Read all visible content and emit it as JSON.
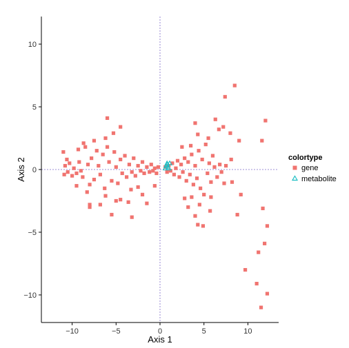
{
  "chart_data": {
    "type": "scatter",
    "xlabel": "Axis 1",
    "ylabel": "Axis 2",
    "xlim": [
      -13.5,
      13.5
    ],
    "ylim": [
      -12.2,
      12.2
    ],
    "x_ticks": [
      -10,
      -5,
      0,
      5,
      10
    ],
    "y_ticks": [
      -10,
      -5,
      0,
      5,
      10
    ],
    "x_tick_labels": [
      "−10",
      "−5",
      "0",
      "5",
      "10"
    ],
    "y_tick_labels": [
      "−10",
      "−5",
      "0",
      "5",
      "10"
    ],
    "grid": false,
    "reference_lines": {
      "x": 0,
      "y": 0,
      "color": "#7b68c8",
      "style": "dotted"
    },
    "legend": {
      "title": "colortype",
      "placement": "right",
      "entries": [
        {
          "label": "gene",
          "marker": "square",
          "color": "#f07470"
        },
        {
          "label": "metabolite",
          "marker": "triangle-open",
          "color": "#1fbfc4"
        }
      ]
    },
    "series": [
      {
        "name": "gene",
        "marker": "square",
        "color": "#f07470",
        "points": [
          [
            -11,
            1.4
          ],
          [
            -10.8,
            0.3
          ],
          [
            -10.6,
            0.8
          ],
          [
            -10.5,
            -0.2
          ],
          [
            -10.9,
            -0.4
          ],
          [
            -10.3,
            0.5
          ],
          [
            -10,
            -0.5
          ],
          [
            -9.8,
            0.1
          ],
          [
            -9.5,
            -0.3
          ],
          [
            -9.2,
            0.6
          ],
          [
            -9,
            -0.1
          ],
          [
            -8.8,
            -0.6
          ],
          [
            -8.5,
            1.8
          ],
          [
            -9.3,
            1.6
          ],
          [
            -8.2,
            0.4
          ],
          [
            -8,
            -1.2
          ],
          [
            -7.8,
            0.9
          ],
          [
            -7.5,
            -0.8
          ],
          [
            -7.2,
            1.5
          ],
          [
            -7,
            0.3
          ],
          [
            -6.8,
            -0.4
          ],
          [
            -6.5,
            1.2
          ],
          [
            -6.3,
            -1.5
          ],
          [
            -6,
            1.8
          ],
          [
            -5.8,
            0.6
          ],
          [
            -5.5,
            -0.9
          ],
          [
            -5.2,
            1.4
          ],
          [
            -5,
            0.2
          ],
          [
            -4.8,
            -1.1
          ],
          [
            -4.5,
            0.8
          ],
          [
            -4.3,
            -0.3
          ],
          [
            -4,
            1.1
          ],
          [
            -3.8,
            -0.6
          ],
          [
            -3.5,
            0.4
          ],
          [
            -3.2,
            -0.2
          ],
          [
            -3,
            0.9
          ],
          [
            -2.8,
            -0.5
          ],
          [
            -2.5,
            0.3
          ],
          [
            -2.2,
            -0.1
          ],
          [
            -2,
            0.6
          ],
          [
            -1.8,
            -0.3
          ],
          [
            -1.5,
            0.2
          ],
          [
            -1.2,
            -0.2
          ],
          [
            -1,
            0.4
          ],
          [
            -0.8,
            -0.1
          ],
          [
            -0.6,
            0.1
          ],
          [
            -0.4,
            -0.3
          ],
          [
            -0.2,
            0.2
          ],
          [
            -6,
            4.1
          ],
          [
            -4.5,
            3.4
          ],
          [
            -5.3,
            2.9
          ],
          [
            -7.5,
            2.3
          ],
          [
            -8.7,
            2.1
          ],
          [
            -6.2,
            2.5
          ],
          [
            -9.5,
            -1.3
          ],
          [
            -8.3,
            -1.8
          ],
          [
            -8,
            -2.8
          ],
          [
            -8,
            -3
          ],
          [
            -6.8,
            -2.8
          ],
          [
            -6.2,
            -2.1
          ],
          [
            -5.5,
            -3.6
          ],
          [
            -4.5,
            -2.4
          ],
          [
            -3.6,
            -2.6
          ],
          [
            -3.3,
            -1.6
          ],
          [
            -3.2,
            -3.8
          ],
          [
            -2.5,
            -1.4
          ],
          [
            -2,
            -2
          ],
          [
            -1.5,
            -2.7
          ],
          [
            -0.6,
            -1.3
          ],
          [
            -5,
            -2.5
          ],
          [
            0.6,
            0.2
          ],
          [
            0.8,
            -0.2
          ],
          [
            1,
            0.3
          ],
          [
            1.2,
            -0.1
          ],
          [
            1.4,
            0.5
          ],
          [
            1.6,
            -0.4
          ],
          [
            1.8,
            0.1
          ],
          [
            2,
            0.7
          ],
          [
            2.2,
            -0.6
          ],
          [
            2.4,
            0.4
          ],
          [
            2.6,
            -0.2
          ],
          [
            2.8,
            0.9
          ],
          [
            3,
            -0.9
          ],
          [
            3.2,
            0.6
          ],
          [
            3.4,
            -0.4
          ],
          [
            3.6,
            1.2
          ],
          [
            3.8,
            -1.2
          ],
          [
            4,
            0.3
          ],
          [
            4.2,
            -0.7
          ],
          [
            4.4,
            1.5
          ],
          [
            4.6,
            -1.5
          ],
          [
            4.8,
            0.8
          ],
          [
            5,
            -2
          ],
          [
            5.2,
            2
          ],
          [
            5.4,
            -0.3
          ],
          [
            5.6,
            0.5
          ],
          [
            5.8,
            -1
          ],
          [
            6,
            1.1
          ],
          [
            6.2,
            0.2
          ],
          [
            6.5,
            -0.6
          ],
          [
            6.8,
            0.4
          ],
          [
            7,
            -0.2
          ],
          [
            7.5,
            0.3
          ],
          [
            4,
            3.7
          ],
          [
            6.3,
            4
          ],
          [
            6.7,
            3.2
          ],
          [
            7.2,
            3.4
          ],
          [
            7.4,
            5.8
          ],
          [
            8,
            2.9
          ],
          [
            4.3,
            2.8
          ],
          [
            3.5,
            1.9
          ],
          [
            2.5,
            1.8
          ],
          [
            5.5,
            2.5
          ],
          [
            2.8,
            -2.3
          ],
          [
            3.2,
            -3
          ],
          [
            4,
            -3.7
          ],
          [
            4.3,
            -4.4
          ],
          [
            4.9,
            -4.5
          ],
          [
            5.7,
            -3.3
          ],
          [
            4.5,
            -2.8
          ],
          [
            3.6,
            -2.2
          ],
          [
            7.3,
            -1.1
          ],
          [
            5.8,
            -2.2
          ],
          [
            8.2,
            -1
          ],
          [
            8.1,
            0.8
          ],
          [
            9,
            2.3
          ],
          [
            8.5,
            6.7
          ],
          [
            9.2,
            -2
          ],
          [
            8.8,
            -3.6
          ],
          [
            11.6,
            2.3
          ],
          [
            12,
            3.9
          ],
          [
            12.2,
            -4.5
          ],
          [
            11.7,
            -3.1
          ],
          [
            11.2,
            -6.6
          ],
          [
            11.9,
            -5.9
          ],
          [
            9.7,
            -8
          ],
          [
            11,
            -9.1
          ],
          [
            12.2,
            -9.9
          ],
          [
            11.5,
            -11
          ]
        ]
      },
      {
        "name": "metabolite",
        "marker": "triangle-open",
        "color": "#1fbfc4",
        "points": [
          [
            0.8,
            0.4
          ],
          [
            0.9,
            0.2
          ],
          [
            1,
            0.1
          ],
          [
            0.7,
            0.3
          ],
          [
            1.1,
            0.5
          ],
          [
            0.8,
            0.5
          ],
          [
            0.6,
            0.1
          ]
        ]
      }
    ]
  }
}
